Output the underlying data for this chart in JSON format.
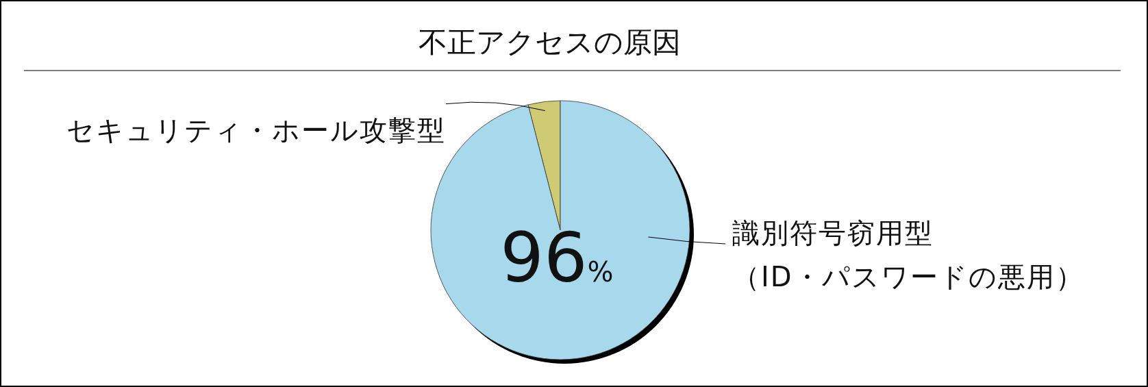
{
  "chart_data": {
    "type": "pie",
    "title": "不正アクセスの原因",
    "categories": [
      "セキュリティ・ホール攻撃型",
      "識別符号窃用型（ID・パスワードの悪用）"
    ],
    "values": [
      4,
      96
    ],
    "colors": [
      "#cfcb75",
      "#a8d8ec"
    ],
    "value_labels": [
      null,
      "96%"
    ]
  }
}
